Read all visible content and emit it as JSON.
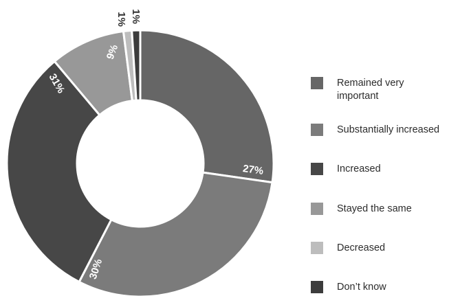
{
  "chart_data": {
    "type": "pie",
    "categories": [
      "Remained very important",
      "Substantially increased",
      "Increased",
      "Stayed the same",
      "Decreased",
      "Don’t know"
    ],
    "values": [
      27,
      30,
      31,
      9,
      1,
      1
    ],
    "value_labels": [
      "27%",
      "30%",
      "31%",
      "9%",
      "1%",
      "1%"
    ],
    "colors": [
      "#666666",
      "#7b7b7b",
      "#474747",
      "#989898",
      "#bdbdbd",
      "#3c3c3c"
    ],
    "legend_position": "right",
    "hole": true
  }
}
